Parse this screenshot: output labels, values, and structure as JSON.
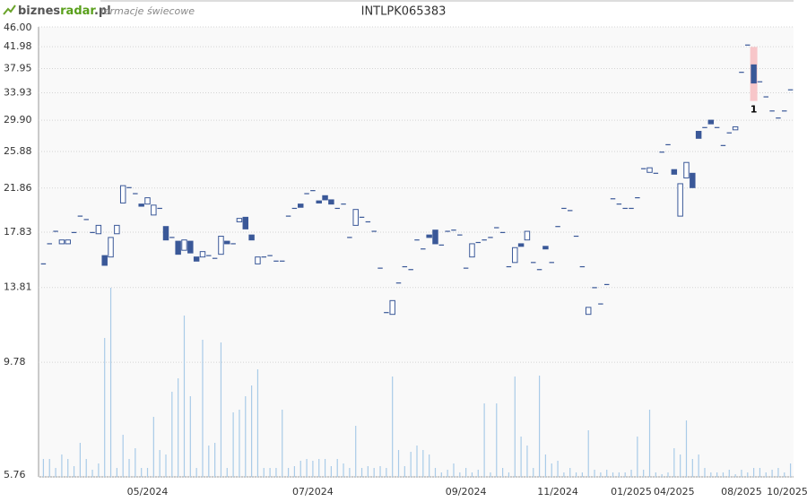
{
  "logo": [
    "biznes",
    "radar",
    ".pl"
  ],
  "subtitle": "formacje świecowe",
  "chart_data": {
    "type": "candlestick",
    "title": "INTLPK065383",
    "log_scale": true,
    "grid": true,
    "ylim": [
      5.76,
      46.0
    ],
    "yticks": [
      {
        "value": 46.0,
        "label": "46.00"
      },
      {
        "value": 41.98,
        "label": "41.98"
      },
      {
        "value": 37.95,
        "label": "37.95"
      },
      {
        "value": 33.93,
        "label": "33.93"
      },
      {
        "value": 29.9,
        "label": "29.90"
      },
      {
        "value": 25.88,
        "label": "25.88"
      },
      {
        "value": 21.86,
        "label": "21.86"
      },
      {
        "value": 17.83,
        "label": "17.83"
      },
      {
        "value": 13.81,
        "label": "13.81"
      },
      {
        "value": 9.78,
        "label": "9.78"
      },
      {
        "value": 5.76,
        "label": "5.76"
      }
    ],
    "up_color": "#ffffff",
    "down_color": "#3a5898",
    "volume_color": "#a9cbe8",
    "highlight_color": "#f7c6c9",
    "categories": [
      null,
      null,
      null,
      null,
      null,
      null,
      null,
      null,
      null,
      null,
      null,
      null,
      null,
      null,
      null,
      null,
      null,
      "05/2024",
      null,
      null,
      null,
      null,
      null,
      null,
      null,
      null,
      null,
      null,
      null,
      null,
      null,
      null,
      null,
      null,
      null,
      null,
      null,
      null,
      null,
      null,
      null,
      null,
      null,
      null,
      "07/2024",
      null,
      null,
      null,
      null,
      null,
      null,
      null,
      null,
      null,
      null,
      null,
      null,
      null,
      null,
      null,
      null,
      null,
      null,
      null,
      null,
      null,
      null,
      null,
      null,
      "09/2024",
      null,
      null,
      null,
      null,
      null,
      null,
      null,
      null,
      null,
      null,
      null,
      null,
      null,
      null,
      "11/2024",
      null,
      null,
      null,
      null,
      null,
      null,
      null,
      null,
      null,
      null,
      null,
      "01/2025",
      null,
      null,
      null,
      null,
      null,
      null,
      "04/2025",
      null,
      null,
      null,
      null,
      null,
      null,
      null,
      null,
      null,
      null,
      "08/2025",
      null,
      null,
      null,
      null,
      null,
      null,
      null,
      "10/2025"
    ],
    "open": [
      15.4,
      16.9,
      17.9,
      16.9,
      16.9,
      17.8,
      19.2,
      18.9,
      17.8,
      17.7,
      16.0,
      15.9,
      17.7,
      20.4,
      21.9,
      21.3,
      20.3,
      20.3,
      19.3,
      19.9,
      18.3,
      17.4,
      17.1,
      16.4,
      17.1,
      15.9,
      15.9,
      16.0,
      15.8,
      16.1,
      17.1,
      16.9,
      18.7,
      19.1,
      17.6,
      15.4,
      15.9,
      16.0,
      15.6,
      15.6,
      19.2,
      19.9,
      20.3,
      21.3,
      21.6,
      20.6,
      21.1,
      20.7,
      19.9,
      20.3,
      17.4,
      18.4,
      19.1,
      18.7,
      17.9,
      15.1,
      12.3,
      12.2,
      14.1,
      15.2,
      15.0,
      17.2,
      16.5,
      17.6,
      18.0,
      16.8,
      17.9,
      18.0,
      17.6,
      15.1,
      15.9,
      17.0,
      17.2,
      17.4,
      18.2,
      17.8,
      15.2,
      15.5,
      16.9,
      17.2,
      15.5,
      15.0,
      16.7,
      15.5,
      18.3,
      19.9,
      19.7,
      17.5,
      15.2,
      12.2,
      13.8,
      12.8,
      14.0,
      20.8,
      20.3,
      19.9,
      19.9,
      20.9,
      23.9,
      23.5,
      23.4,
      25.8,
      26.7,
      23.8,
      19.2,
      22.9,
      23.4,
      28.4,
      28.9,
      29.9,
      28.9,
      26.6,
      28.2,
      28.6,
      37.3,
      42.3,
      38.6,
      35.7,
      33.3,
      31.2,
      30.2,
      31.2,
      34.4
    ],
    "close": [
      15.4,
      16.9,
      17.9,
      17.2,
      17.2,
      17.8,
      19.2,
      18.9,
      17.8,
      18.4,
      15.3,
      17.4,
      18.4,
      22.1,
      21.9,
      21.3,
      20.1,
      20.9,
      20.2,
      19.9,
      17.2,
      17.4,
      16.1,
      17.2,
      16.2,
      15.6,
      16.3,
      16.0,
      15.8,
      17.5,
      16.9,
      16.9,
      19.0,
      18.1,
      17.2,
      15.9,
      15.9,
      16.0,
      15.6,
      15.6,
      19.2,
      19.9,
      20.0,
      21.3,
      21.6,
      20.4,
      20.7,
      20.3,
      19.9,
      20.3,
      17.4,
      19.8,
      19.1,
      18.7,
      17.9,
      15.1,
      12.3,
      13.0,
      14.1,
      15.2,
      15.0,
      17.2,
      16.5,
      17.4,
      16.9,
      16.8,
      17.9,
      18.0,
      17.6,
      15.1,
      16.9,
      17.0,
      17.2,
      17.4,
      18.2,
      17.8,
      15.2,
      16.6,
      16.7,
      17.9,
      15.5,
      15.0,
      16.5,
      15.5,
      18.3,
      19.9,
      19.7,
      17.5,
      15.2,
      12.6,
      13.8,
      12.8,
      14.0,
      20.8,
      20.3,
      19.9,
      19.9,
      20.9,
      23.9,
      24.0,
      23.4,
      25.8,
      26.7,
      23.3,
      22.3,
      24.6,
      21.9,
      27.5,
      28.9,
      29.4,
      28.9,
      26.6,
      28.2,
      29.0,
      37.3,
      42.3,
      35.5,
      35.7,
      33.3,
      31.2,
      30.2,
      31.2,
      34.4
    ],
    "volume": [
      20,
      20,
      10,
      25,
      20,
      12,
      38,
      20,
      8,
      15,
      155,
      211,
      10,
      47,
      20,
      32,
      10,
      10,
      67,
      30,
      25,
      95,
      110,
      180,
      90,
      10,
      153,
      35,
      38,
      150,
      10,
      72,
      75,
      90,
      102,
      120,
      10,
      10,
      10,
      75,
      10,
      12,
      18,
      20,
      18,
      20,
      20,
      12,
      20,
      15,
      10,
      57,
      10,
      12,
      10,
      12,
      10,
      112,
      30,
      12,
      28,
      35,
      30,
      25,
      10,
      5,
      8,
      15,
      5,
      10,
      5,
      8,
      82,
      5,
      82,
      10,
      5,
      112,
      45,
      35,
      10,
      113,
      25,
      15,
      18,
      5,
      10,
      5,
      5,
      52,
      8,
      5,
      8,
      5,
      5,
      5,
      8,
      45,
      8,
      75,
      5,
      3,
      5,
      32,
      25,
      63,
      20,
      25,
      10,
      5,
      5,
      5,
      8,
      3,
      8,
      5,
      10,
      10,
      5,
      8,
      10,
      5,
      15
    ],
    "annotations": [
      {
        "text": "1",
        "candle": 116
      }
    ]
  }
}
